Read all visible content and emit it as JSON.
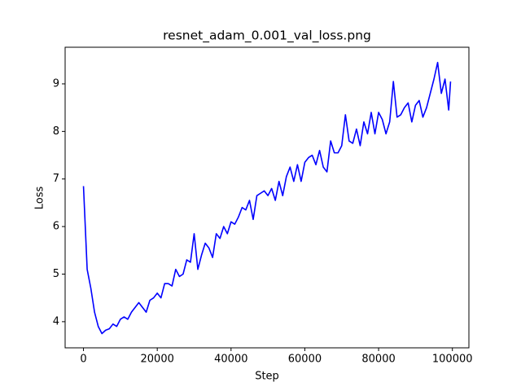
{
  "chart_data": {
    "type": "line",
    "title": "resnet_adam_0.001_val_loss.png",
    "x_label": "Step",
    "y_label": "Loss",
    "x": [
      0,
      1000,
      2000,
      3000,
      4000,
      5000,
      6000,
      7000,
      8000,
      9000,
      10000,
      11000,
      12000,
      13000,
      14000,
      15000,
      16000,
      17000,
      18000,
      19000,
      20000,
      21000,
      22000,
      23000,
      24000,
      25000,
      26000,
      27000,
      28000,
      29000,
      30000,
      31000,
      32000,
      33000,
      34000,
      35000,
      36000,
      37000,
      38000,
      39000,
      40000,
      41000,
      42000,
      43000,
      44000,
      45000,
      46000,
      47000,
      48000,
      49000,
      50000,
      51000,
      52000,
      53000,
      54000,
      55000,
      56000,
      57000,
      58000,
      59000,
      60000,
      61000,
      62000,
      63000,
      64000,
      65000,
      66000,
      67000,
      68000,
      69000,
      70000,
      71000,
      72000,
      73000,
      74000,
      75000,
      76000,
      77000,
      78000,
      79000,
      80000,
      81000,
      82000,
      83000,
      84000,
      85000,
      86000,
      87000,
      88000,
      89000,
      90000,
      91000,
      92000,
      93000,
      94000,
      95000,
      96000,
      97000,
      98000,
      99000,
      99500
    ],
    "series": [
      {
        "color": "#0000ff",
        "values": [
          6.85,
          5.1,
          4.7,
          4.2,
          3.9,
          3.75,
          3.82,
          3.85,
          3.95,
          3.9,
          4.05,
          4.1,
          4.05,
          4.2,
          4.3,
          4.4,
          4.3,
          4.2,
          4.45,
          4.5,
          4.6,
          4.5,
          4.8,
          4.8,
          4.75,
          5.1,
          4.95,
          5.0,
          5.3,
          5.25,
          5.85,
          5.1,
          5.4,
          5.65,
          5.55,
          5.35,
          5.85,
          5.75,
          6.0,
          5.85,
          6.1,
          6.05,
          6.2,
          6.4,
          6.35,
          6.55,
          6.15,
          6.65,
          6.7,
          6.75,
          6.65,
          6.8,
          6.55,
          6.95,
          6.65,
          7.05,
          7.25,
          6.95,
          7.3,
          6.95,
          7.35,
          7.45,
          7.5,
          7.3,
          7.6,
          7.25,
          7.15,
          7.8,
          7.55,
          7.55,
          7.7,
          8.35,
          7.8,
          7.75,
          8.05,
          7.7,
          8.2,
          7.95,
          8.4,
          7.95,
          8.4,
          8.25,
          7.95,
          8.2,
          9.05,
          8.3,
          8.35,
          8.5,
          8.6,
          8.2,
          8.55,
          8.65,
          8.3,
          8.5,
          8.8,
          9.1,
          9.45,
          8.8,
          9.1,
          8.45,
          9.05
        ]
      }
    ],
    "xlim": [
      -4975,
      104475
    ],
    "ylim": [
      3.45,
      9.77
    ],
    "xticks": [
      0,
      20000,
      40000,
      60000,
      80000,
      100000
    ],
    "yticks": [
      4,
      5,
      6,
      7,
      8,
      9
    ]
  }
}
